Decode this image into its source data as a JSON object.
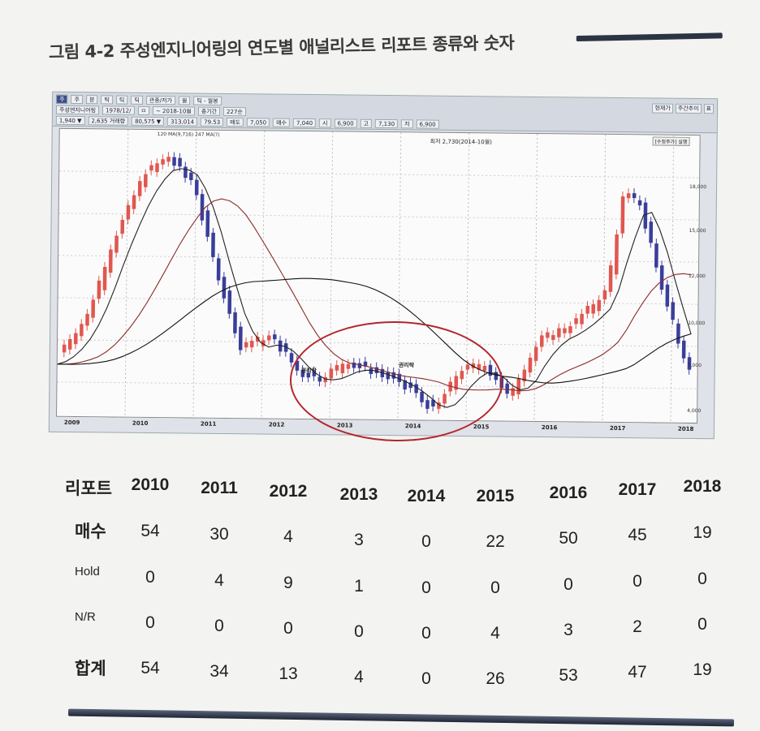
{
  "heading": {
    "title": "그림 4-2  주성엔지니어링의 연도별 애널리스트 리포트 종류와 숫자"
  },
  "screenshot": {
    "toolbar_row1": [
      "주",
      "주",
      "분",
      "틱",
      "틱",
      "틱",
      "관종/저가",
      "월",
      "틱 - 월봉"
    ],
    "toolbar_row2": [
      "주성엔지니어링",
      "1978/12/",
      "ㅁ",
      "~ 2018-10월",
      "총기간",
      "227순"
    ],
    "toolbar_row3": [
      "1,940 ▼",
      "2,635 거래량",
      "80,575 ▼",
      "313,014",
      "79.53",
      "매도",
      "7,050",
      "매수",
      "7,040",
      "시",
      "6,900",
      "고",
      "7,130",
      "저",
      "6,900"
    ],
    "indicator_label": "120 MA(9,716)  247 MA(?)",
    "high_label": "최저 2,730(2014-10월)",
    "low_label": "최저 2,730(2014-10월)",
    "buttons_right": [
      "현재가",
      "주간추이",
      "표"
    ],
    "plot_button": "[수정주가] 실행",
    "annotation_1": "권리락",
    "annotation_2": "권리락",
    "y_ticks": [
      "18,000",
      "15,000",
      "12,000",
      "10,000",
      "7,000",
      "4,000"
    ],
    "x_ticks": [
      "2009",
      "2010",
      "2011",
      "2012",
      "2013",
      "2014",
      "2015",
      "2016",
      "2017",
      "2018"
    ]
  },
  "chart_data": {
    "type": "table",
    "categories": [
      "2010",
      "2011",
      "2012",
      "2013",
      "2014",
      "2015",
      "2016",
      "2017",
      "2018"
    ],
    "header_label": "리포트",
    "rows": [
      {
        "label": "매수",
        "values": [
          54,
          30,
          4,
          3,
          0,
          22,
          50,
          45,
          19
        ]
      },
      {
        "label": "Hold",
        "values": [
          0,
          4,
          9,
          1,
          0,
          0,
          0,
          0,
          0
        ]
      },
      {
        "label": "N/R",
        "values": [
          0,
          0,
          0,
          0,
          0,
          4,
          3,
          2,
          0
        ]
      },
      {
        "label": "합계",
        "values": [
          54,
          34,
          13,
          4,
          0,
          26,
          53,
          47,
          19
        ]
      }
    ],
    "candle_colors": {
      "up": "#e0574f",
      "down": "#3a3e9a"
    }
  }
}
